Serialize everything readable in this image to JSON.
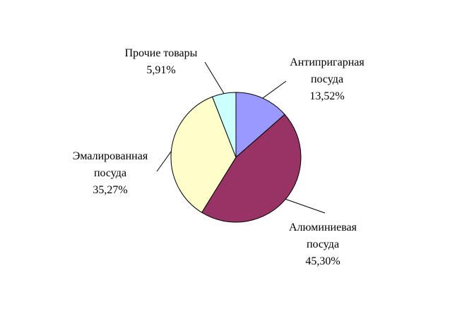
{
  "chart_data": {
    "type": "pie",
    "categories": [
      "Антипригарная посуда",
      "Алюминиевая посуда",
      "Эмалированная посуда",
      "Прочие товары"
    ],
    "values": [
      13.52,
      45.3,
      35.27,
      5.91
    ],
    "value_labels": [
      "13,52%",
      "45,30%",
      "35,27%",
      "5,91%"
    ],
    "colors": [
      "#9999ff",
      "#993366",
      "#ffffcc",
      "#ccffff"
    ]
  }
}
